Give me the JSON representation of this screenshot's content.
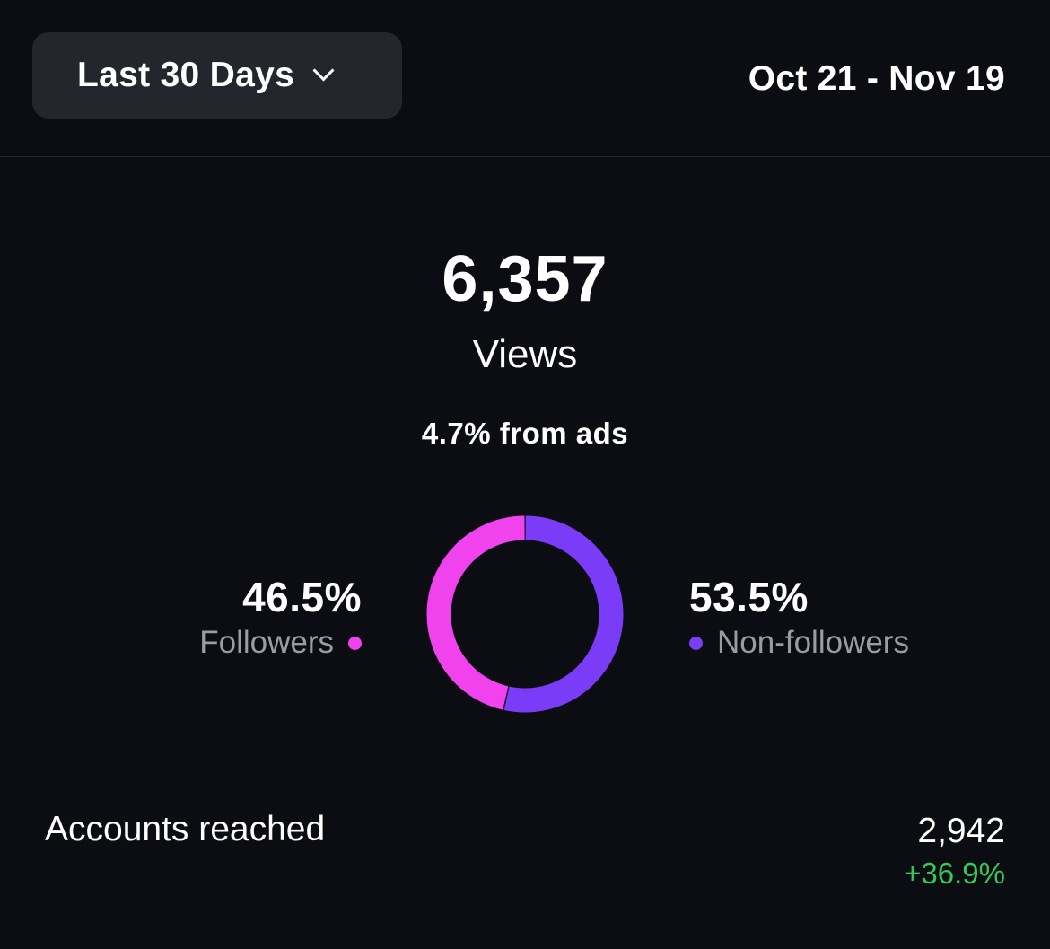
{
  "header": {
    "range_label": "Last 30 Days",
    "date_range": "Oct 21 - Nov 19"
  },
  "summary": {
    "total": "6,357",
    "total_label": "Views",
    "ads_note": "4.7% from ads"
  },
  "breakdown": {
    "followers": {
      "percent_label": "46.5%",
      "percent": 46.5,
      "label": "Followers",
      "color": "#f043ee"
    },
    "non_followers": {
      "percent_label": "53.5%",
      "percent": 53.5,
      "label": "Non-followers",
      "color": "#7b3cf7"
    }
  },
  "accounts_reached": {
    "label": "Accounts reached",
    "value": "2,942",
    "change": "+36.9%",
    "change_color": "#34c759"
  },
  "icons": {
    "dropdown": "chevron-down-icon"
  }
}
